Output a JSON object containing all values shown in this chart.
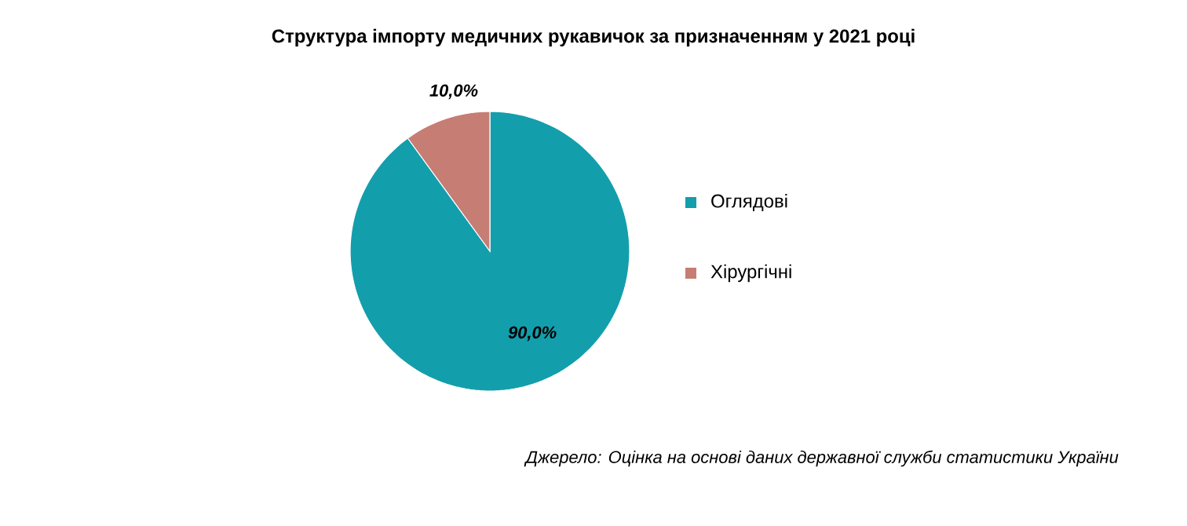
{
  "chart_data": {
    "type": "pie",
    "title": "Структура імпорту медичних рукавичок за призначенням у 2021 році",
    "categories": [
      "Оглядові",
      "Хірургічні"
    ],
    "values": [
      90,
      10
    ],
    "colors": [
      "#139eac",
      "#c67d74"
    ],
    "value_labels": [
      "90,0%",
      "10,0%"
    ],
    "legend": "right",
    "annotations": [
      "Джерело: Оцінка на основі даних державної служби статистики України"
    ]
  }
}
